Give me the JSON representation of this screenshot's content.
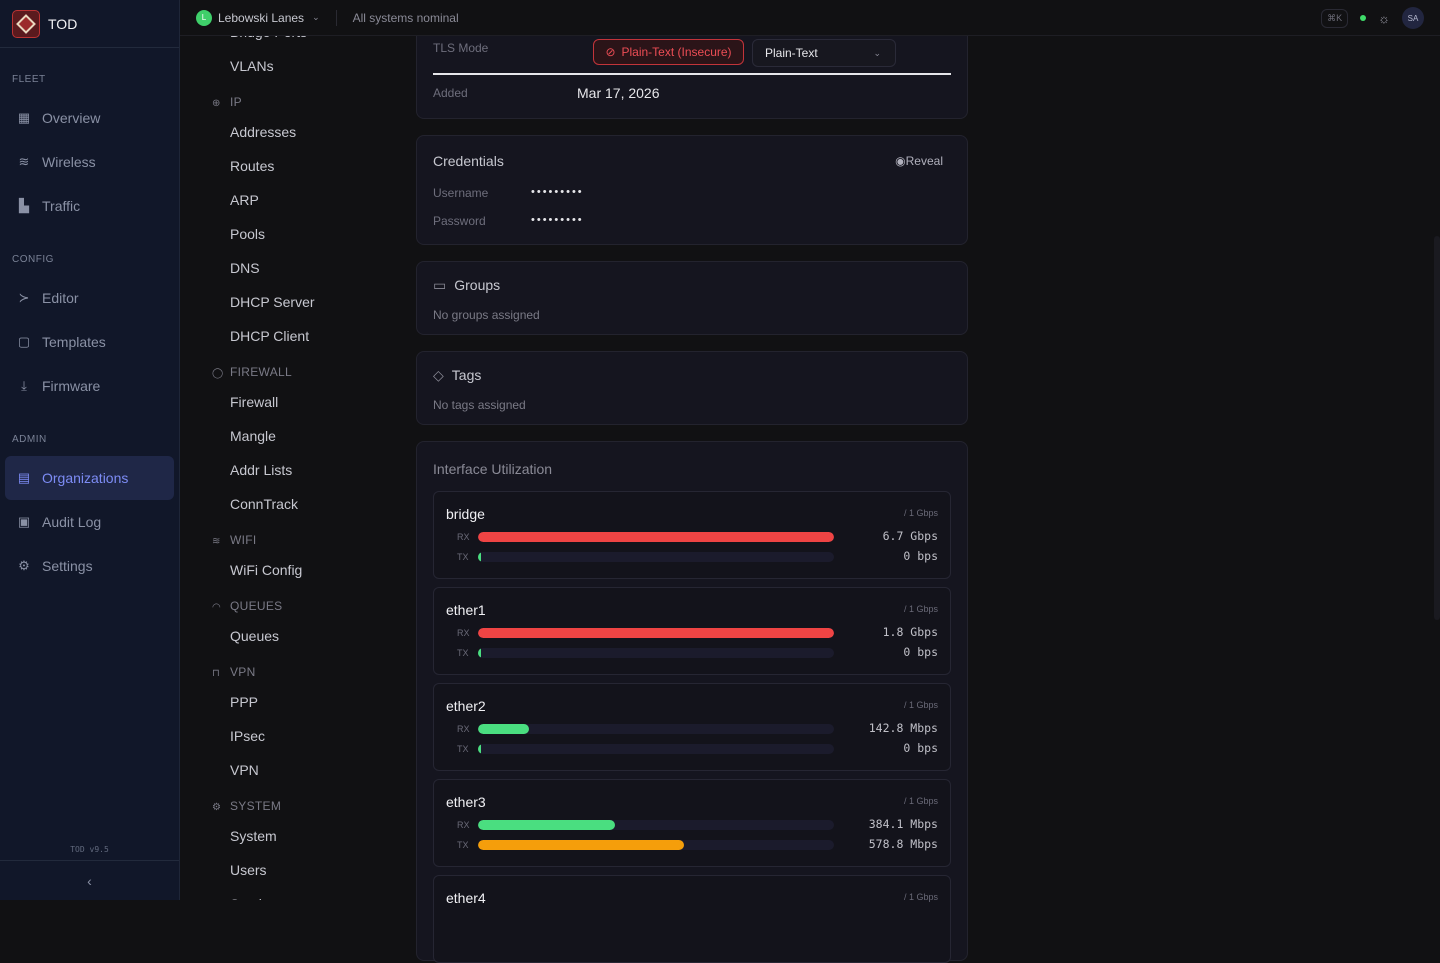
{
  "app": {
    "name": "TOD",
    "version": "TOD v9.5"
  },
  "sidebar": {
    "sections": [
      {
        "label": "FLEET",
        "items": [
          {
            "label": "Overview",
            "icon": "grid-icon",
            "glyph": "▦"
          },
          {
            "label": "Wireless",
            "icon": "wifi-icon",
            "glyph": "≋"
          },
          {
            "label": "Traffic",
            "icon": "bar-chart-icon",
            "glyph": "▙"
          }
        ]
      },
      {
        "label": "CONFIG",
        "items": [
          {
            "label": "Editor",
            "icon": "terminal-icon",
            "glyph": "≻"
          },
          {
            "label": "Templates",
            "icon": "file-code-icon",
            "glyph": "▢"
          },
          {
            "label": "Firmware",
            "icon": "download-icon",
            "glyph": "⤓"
          }
        ]
      },
      {
        "label": "ADMIN",
        "items": [
          {
            "label": "Organizations",
            "icon": "building-icon",
            "glyph": "▤",
            "active": true
          },
          {
            "label": "Audit Log",
            "icon": "clipboard-icon",
            "glyph": "▣"
          },
          {
            "label": "Settings",
            "icon": "gear-icon",
            "glyph": "⚙"
          }
        ]
      }
    ]
  },
  "topbar": {
    "org_initial": "L",
    "org_name": "Lebowski Lanes",
    "status": "All systems nominal",
    "shortcut": "⌘K",
    "avatar": "SA",
    "accent": "#3fcf6a"
  },
  "subnav": [
    {
      "type": "item",
      "label": "Bridge Ports"
    },
    {
      "type": "item",
      "label": "VLANs"
    },
    {
      "type": "head",
      "label": "IP",
      "icon": "globe-icon",
      "glyph": "⊕"
    },
    {
      "type": "item",
      "label": "Addresses"
    },
    {
      "type": "item",
      "label": "Routes"
    },
    {
      "type": "item",
      "label": "ARP"
    },
    {
      "type": "item",
      "label": "Pools"
    },
    {
      "type": "item",
      "label": "DNS"
    },
    {
      "type": "item",
      "label": "DHCP Server"
    },
    {
      "type": "item",
      "label": "DHCP Client"
    },
    {
      "type": "head",
      "label": "FIREWALL",
      "icon": "shield-icon",
      "glyph": "◯"
    },
    {
      "type": "item",
      "label": "Firewall"
    },
    {
      "type": "item",
      "label": "Mangle"
    },
    {
      "type": "item",
      "label": "Addr Lists"
    },
    {
      "type": "item",
      "label": "ConnTrack"
    },
    {
      "type": "head",
      "label": "WIFI",
      "icon": "wifi-icon",
      "glyph": "≋"
    },
    {
      "type": "item",
      "label": "WiFi Config"
    },
    {
      "type": "head",
      "label": "QUEUES",
      "icon": "gauge-icon",
      "glyph": "◠"
    },
    {
      "type": "item",
      "label": "Queues"
    },
    {
      "type": "head",
      "label": "VPN",
      "icon": "lock-icon",
      "glyph": "⊓"
    },
    {
      "type": "item",
      "label": "PPP"
    },
    {
      "type": "item",
      "label": "IPsec"
    },
    {
      "type": "item",
      "label": "VPN"
    },
    {
      "type": "head",
      "label": "SYSTEM",
      "icon": "gear-icon",
      "glyph": "⚙"
    },
    {
      "type": "item",
      "label": "System"
    },
    {
      "type": "item",
      "label": "Users"
    },
    {
      "type": "item",
      "label": "Services"
    }
  ],
  "device": {
    "tls_label": "TLS Mode",
    "tls_badge": "Plain-Text (Insecure)",
    "tls_select": "Plain-Text",
    "added_label": "Added",
    "added_value": "Mar 17, 2026"
  },
  "credentials": {
    "title": "Credentials",
    "reveal": "Reveal",
    "username_label": "Username",
    "username_value": "•••••••••",
    "password_label": "Password",
    "password_value": "•••••••••"
  },
  "groups": {
    "title": "Groups",
    "empty": "No groups assigned"
  },
  "tags": {
    "title": "Tags",
    "empty": "No tags assigned"
  },
  "utilization": {
    "title": "Interface Utilization",
    "colors": {
      "high": "#ef4444",
      "low": "#4ade80",
      "mid": "#f59e0b"
    },
    "interfaces": [
      {
        "name": "bridge",
        "capacity": "/ 1 Gbps",
        "rx_label": "RX",
        "tx_label": "TX",
        "rx": "6.7 Gbps",
        "tx": "0 bps",
        "rx_pct": 100,
        "tx_pct": 0,
        "rx_color": "#ef4444",
        "tx_color": "#4ade80"
      },
      {
        "name": "ether1",
        "capacity": "/ 1 Gbps",
        "rx_label": "RX",
        "tx_label": "TX",
        "rx": "1.8 Gbps",
        "tx": "0 bps",
        "rx_pct": 100,
        "tx_pct": 0,
        "rx_color": "#ef4444",
        "tx_color": "#4ade80"
      },
      {
        "name": "ether2",
        "capacity": "/ 1 Gbps",
        "rx_label": "RX",
        "tx_label": "TX",
        "rx": "142.8 Mbps",
        "tx": "0 bps",
        "rx_pct": 14.3,
        "tx_pct": 0,
        "rx_color": "#4ade80",
        "tx_color": "#4ade80"
      },
      {
        "name": "ether3",
        "capacity": "/ 1 Gbps",
        "rx_label": "RX",
        "tx_label": "TX",
        "rx": "384.1 Mbps",
        "tx": "578.8 Mbps",
        "rx_pct": 38.4,
        "tx_pct": 57.9,
        "rx_color": "#4ade80",
        "tx_color": "#f59e0b"
      },
      {
        "name": "ether4",
        "capacity": "/ 1 Gbps"
      }
    ]
  }
}
